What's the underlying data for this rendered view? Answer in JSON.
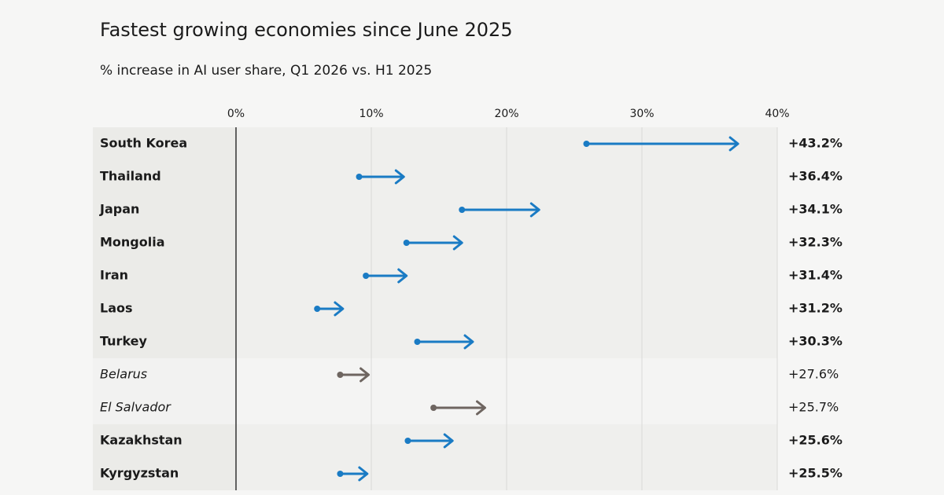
{
  "chart_data": {
    "type": "arrow",
    "title": "Fastest growing economies since June 2025",
    "subtitle": "% increase in AI user share, Q1 2026 vs. H1 2025",
    "categories": [
      "South Korea",
      "Thailand",
      "Japan",
      "Mongolia",
      "Iran",
      "Laos",
      "Turkey",
      "Belarus",
      "El Salvador",
      "Kazakhstan",
      "Kyrgyzstan"
    ],
    "start": [
      25.9,
      9.1,
      16.7,
      12.6,
      9.6,
      6.0,
      13.4,
      7.7,
      14.6,
      12.7,
      7.7
    ],
    "end": [
      37.1,
      12.4,
      22.4,
      16.7,
      12.6,
      7.9,
      17.5,
      9.8,
      18.4,
      16.0,
      9.7
    ],
    "values": [
      43.2,
      36.4,
      34.1,
      32.3,
      31.4,
      31.2,
      30.3,
      27.6,
      25.7,
      25.6,
      25.5
    ],
    "value_labels": [
      "+43.2%",
      "+36.4%",
      "+34.1%",
      "+32.3%",
      "+31.4%",
      "+31.2%",
      "+30.3%",
      "+27.6%",
      "+25.7%",
      "+25.6%",
      "+25.5%"
    ],
    "highlight": [
      true,
      true,
      true,
      true,
      true,
      true,
      true,
      false,
      false,
      true,
      true
    ],
    "colors": {
      "highlight": "#1a7bc4",
      "other": "#6e6560"
    },
    "xlim": [
      0,
      40
    ],
    "xticks": [
      {
        "value": 0,
        "label": "0%"
      },
      {
        "value": 10,
        "label": "10%"
      },
      {
        "value": 20,
        "label": "20%"
      },
      {
        "value": 30,
        "label": "30%"
      },
      {
        "value": 40,
        "label": "40%"
      }
    ],
    "grid": true
  }
}
